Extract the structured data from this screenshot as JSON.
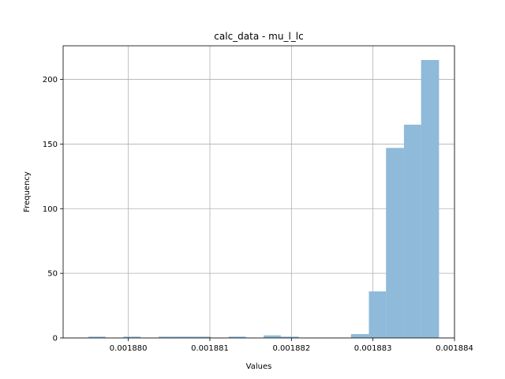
{
  "chart_data": {
    "type": "bar",
    "title": "calc_data - mu_l_lc",
    "xlabel": "Values",
    "ylabel": "Frequency",
    "grid": true,
    "bar_color": "#8fbad9",
    "xlim": [
      0.0018792,
      0.001884
    ],
    "ylim": [
      0,
      226
    ],
    "x_ticks": [
      0.00188,
      0.001881,
      0.001882,
      0.001883,
      0.001884
    ],
    "x_tick_labels": [
      "0.001880",
      "0.001881",
      "0.001882",
      "0.001883",
      "0.001884"
    ],
    "y_ticks": [
      0,
      50,
      100,
      150,
      200
    ],
    "y_tick_labels": [
      "0",
      "50",
      "100",
      "150",
      "200"
    ],
    "bin_edges": [
      0.00187951,
      0.00187972,
      0.00187994,
      0.00188015,
      0.00188037,
      0.00188058,
      0.0018808,
      0.00188101,
      0.00188123,
      0.00188144,
      0.00188166,
      0.00188187,
      0.00188209,
      0.0018823,
      0.00188252,
      0.00188273,
      0.00188295,
      0.00188316,
      0.00188338,
      0.00188359,
      0.00188381
    ],
    "values": [
      1,
      0,
      1,
      0,
      1,
      1,
      1,
      0,
      1,
      0,
      2,
      1,
      0,
      0,
      0,
      3,
      36,
      147,
      165,
      215
    ]
  }
}
